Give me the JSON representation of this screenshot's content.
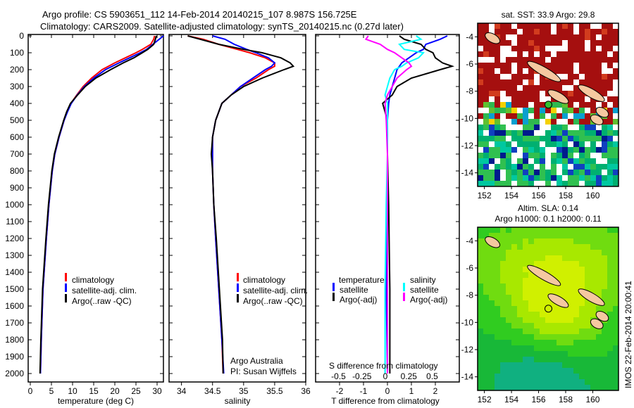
{
  "title_line1": "Argo profile: CS 5903651_112 14-Feb-2014 20140215_107 8.987S 156.725E",
  "title_line2": "Climatology: CARS2009. Satellite-adjusted climatology: synTS_20140215.nc (0.27d later)",
  "colors": {
    "climatology": "#ff0000",
    "satellite": "#0000ff",
    "argo": "#000000",
    "sal_satellite": "#00ffff",
    "sal_argo": "#ff00ff"
  },
  "chart_data": [
    {
      "type": "line",
      "name": "temperature-profile",
      "xlabel": "temperature (deg C)",
      "ylabel": "depth",
      "xlim": [
        -0.5,
        31.5
      ],
      "ylim": [
        2050,
        0
      ],
      "xticks": [
        "0",
        "5",
        "10",
        "15",
        "20",
        "25",
        "30"
      ],
      "yticks": [
        "0",
        "100",
        "200",
        "300",
        "400",
        "500",
        "600",
        "700",
        "800",
        "900",
        "1000",
        "1100",
        "1200",
        "1300",
        "1400",
        "1500",
        "1600",
        "1700",
        "1800",
        "1900",
        "2000"
      ],
      "legend": [
        "climatology",
        "satellite-adj. clim.",
        "Argo(..raw -QC)"
      ],
      "depth": [
        0,
        20,
        50,
        80,
        100,
        130,
        160,
        200,
        250,
        300,
        350,
        400,
        450,
        500,
        600,
        700,
        800,
        1000,
        1200,
        1500,
        1800,
        2000
      ],
      "series": [
        {
          "name": "climatology",
          "color": "climatology",
          "values": [
            29.4,
            29.2,
            28.5,
            26.5,
            25,
            22.5,
            20,
            17,
            14.5,
            12.5,
            11,
            9.6,
            8.7,
            8,
            6.8,
            5.8,
            5.2,
            4.4,
            3.8,
            3,
            2.6,
            2.4
          ]
        },
        {
          "name": "satellite-adj. clim.",
          "color": "satellite",
          "values": [
            31.5,
            30.5,
            29,
            27.5,
            26,
            23.5,
            21,
            17.8,
            15,
            12.8,
            11.1,
            9.7,
            8.8,
            8,
            6.8,
            5.8,
            5.2,
            4.4,
            3.8,
            3,
            2.6,
            2.4
          ]
        },
        {
          "name": "Argo",
          "color": "argo",
          "values": [
            29.8,
            29.6,
            29.2,
            27.8,
            26.5,
            24.5,
            22,
            19,
            15.5,
            13,
            11.2,
            9.5,
            8.6,
            7.9,
            6.7,
            5.7,
            5.1,
            4.3,
            3.7,
            2.9,
            2.5,
            2.3
          ]
        }
      ]
    },
    {
      "type": "line",
      "name": "salinity-profile",
      "xlabel": "salinity",
      "xlim": [
        33.8,
        36.0
      ],
      "ylim": [
        2050,
        0
      ],
      "xticks": [
        "34",
        "34.5",
        "35",
        "35.5",
        "36"
      ],
      "legend": [
        "climatology",
        "satellite-adj. clim.",
        "Argo(..raw -QC)"
      ],
      "annotation1": "Argo Australia",
      "annotation2": "PI: Susan Wijffels",
      "depth": [
        0,
        20,
        50,
        80,
        100,
        130,
        160,
        180,
        200,
        250,
        300,
        350,
        400,
        500,
        600,
        700,
        800,
        1000,
        1200,
        1500,
        1800,
        2000
      ],
      "series": [
        {
          "name": "climatology",
          "color": "climatology",
          "values": [
            34.1,
            34.35,
            34.6,
            34.9,
            35.1,
            35.35,
            35.5,
            35.5,
            35.4,
            35.2,
            34.95,
            34.8,
            34.65,
            34.55,
            34.5,
            34.5,
            34.5,
            34.52,
            34.55,
            34.6,
            34.65,
            34.67
          ]
        },
        {
          "name": "satellite-adj. clim.",
          "color": "satellite",
          "values": [
            34.5,
            34.7,
            34.85,
            35.05,
            35.2,
            35.4,
            35.5,
            35.45,
            35.35,
            35.15,
            34.95,
            34.8,
            34.65,
            34.55,
            34.5,
            34.5,
            34.5,
            34.52,
            34.55,
            34.6,
            34.65,
            34.68
          ]
        },
        {
          "name": "Argo",
          "color": "argo",
          "values": [
            34.1,
            34.3,
            34.6,
            35.0,
            35.3,
            35.6,
            35.75,
            35.8,
            35.65,
            35.3,
            35.0,
            34.8,
            34.65,
            34.55,
            34.5,
            34.48,
            34.5,
            34.52,
            34.56,
            34.61,
            34.66,
            34.67
          ]
        }
      ]
    },
    {
      "type": "line",
      "name": "difference-profile",
      "xlabel": "T difference from climatology",
      "x2label": "S difference from climatology",
      "xlim": [
        -3,
        3
      ],
      "ylim": [
        2050,
        0
      ],
      "xticks": [
        "-2",
        "-1",
        "0",
        "1",
        "2"
      ],
      "x2ticks": [
        "-0.5",
        "-0.25",
        "0",
        "0.25",
        "0.5"
      ],
      "legend_temperature": "temperature",
      "legend_salinity": "salinity",
      "legend": [
        "satellite",
        "Argo(-adj)",
        "satellite",
        "Argo(-adj)"
      ],
      "depth": [
        0,
        20,
        50,
        80,
        100,
        130,
        160,
        180,
        200,
        250,
        300,
        350,
        400,
        500,
        700,
        1000,
        1500,
        2000
      ],
      "series": [
        {
          "name": "T satellite",
          "color": "satellite",
          "values": [
            2.5,
            2.2,
            1.6,
            1.5,
            1.2,
            0.9,
            0.6,
            0.5,
            0.4,
            0.3,
            0.2,
            0.1,
            0.05,
            0.0,
            0.0,
            0.0,
            -0.05,
            0.0
          ]
        },
        {
          "name": "T Argo",
          "color": "argo",
          "values": [
            0.5,
            0.7,
            1.4,
            1.6,
            1.9,
            2.0,
            2.3,
            2.7,
            2.2,
            1.0,
            0.4,
            0.2,
            -0.2,
            0.0,
            0.0,
            0.05,
            0.1,
            0.1
          ]
        },
        {
          "name": "S satellite",
          "color": "sal_satellite",
          "values": [
            1.2,
            1.4,
            0.5,
            0.7,
            1.5,
            1.3,
            0.8,
            0.6,
            0.3,
            0.1,
            0.0,
            -0.1,
            0.0,
            0.0,
            0.0,
            -0.05,
            -0.1,
            -0.1
          ]
        },
        {
          "name": "S Argo",
          "color": "sal_argo",
          "values": [
            -0.8,
            -0.9,
            -0.3,
            0.0,
            0.3,
            0.6,
            0.9,
            1.0,
            0.8,
            0.4,
            0.2,
            0.0,
            -0.1,
            -0.05,
            0.0,
            0.0,
            0.0,
            0.0
          ]
        }
      ]
    },
    {
      "type": "heatmap",
      "name": "sst-map",
      "title": "sat. SST: 33.9 Argo: 29.8",
      "xlim": [
        151.5,
        161.9
      ],
      "ylim": [
        -15,
        -3
      ],
      "xticks": [
        "152",
        "154",
        "156",
        "158",
        "160"
      ],
      "yticks": [
        "-4",
        "-6",
        "-8",
        "-10",
        "-12",
        "-14"
      ],
      "float_position": [
        156.725,
        -8.987
      ]
    },
    {
      "type": "heatmap",
      "name": "sla-map",
      "title1": "Altim. SLA: 0.14",
      "title2": "Argo h1000: 0.1 h2000: 0.11",
      "xlim": [
        151.5,
        161.9
      ],
      "ylim": [
        -15,
        -3
      ],
      "xticks": [
        "152",
        "154",
        "156",
        "158",
        "160"
      ],
      "yticks": [
        "-4",
        "-6",
        "-8",
        "-10",
        "-12",
        "-14"
      ],
      "float_position": [
        156.725,
        -8.987
      ],
      "side_label": "IMOS 22-Feb-2014 20:00:41"
    }
  ]
}
